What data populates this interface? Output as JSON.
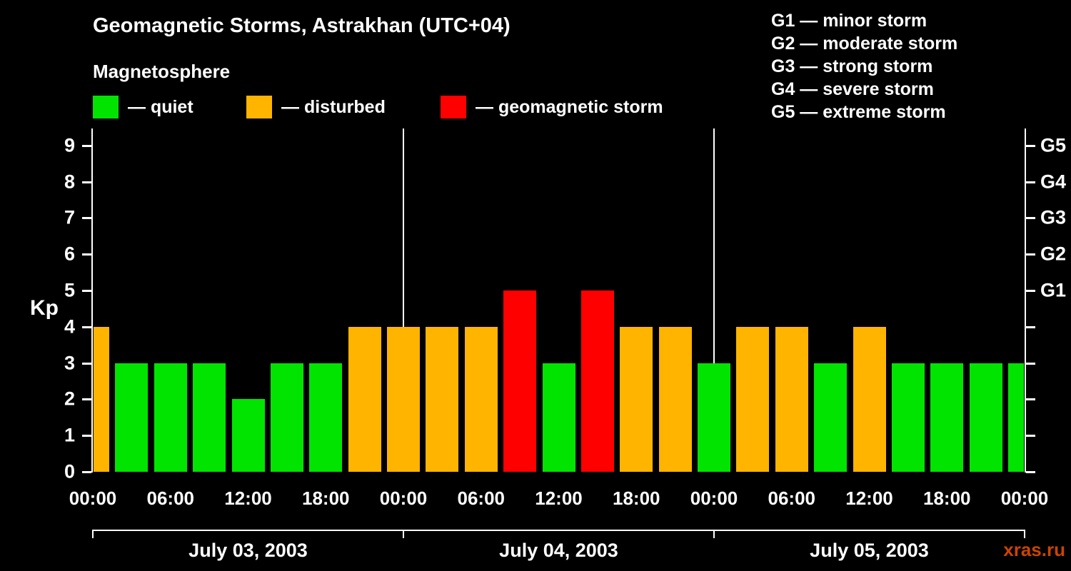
{
  "title": "Geomagnetic Storms, Astrakhan (UTC+04)",
  "subtitle": "Magnetosphere",
  "kp_legend": [
    {
      "name": "quiet",
      "label": "— quiet",
      "color": "#00e400"
    },
    {
      "name": "disturbed",
      "label": "— disturbed",
      "color": "#ffb400"
    },
    {
      "name": "storm",
      "label": "— geomagnetic storm",
      "color": "#ff0000"
    }
  ],
  "g_scale_legend": [
    "G1 — minor storm",
    "G2 — moderate storm",
    "G3 — strong storm",
    "G4 — severe storm",
    "G5 — extreme storm"
  ],
  "watermark": "xras.ru",
  "watermark_color": "#cc4400",
  "chart_data": {
    "type": "bar",
    "title": "Geomagnetic Storms, Astrakhan (UTC+04)",
    "ylabel": "Kp",
    "ylim": [
      0,
      9.45
    ],
    "yticks": [
      0,
      1,
      2,
      3,
      4,
      5,
      6,
      7,
      8,
      9
    ],
    "right_axis": [
      {
        "kp": 5,
        "label": "G1"
      },
      {
        "kp": 6,
        "label": "G2"
      },
      {
        "kp": 7,
        "label": "G3"
      },
      {
        "kp": 8,
        "label": "G4"
      },
      {
        "kp": 9,
        "label": "G5"
      }
    ],
    "x_unit_hours": 3,
    "x_range_hours": [
      0,
      72
    ],
    "x_tick_labels": [
      {
        "hour": 0,
        "label": "00:00"
      },
      {
        "hour": 6,
        "label": "06:00"
      },
      {
        "hour": 12,
        "label": "12:00"
      },
      {
        "hour": 18,
        "label": "18:00"
      },
      {
        "hour": 24,
        "label": "00:00"
      },
      {
        "hour": 30,
        "label": "06:00"
      },
      {
        "hour": 36,
        "label": "12:00"
      },
      {
        "hour": 42,
        "label": "18:00"
      },
      {
        "hour": 48,
        "label": "00:00"
      },
      {
        "hour": 54,
        "label": "06:00"
      },
      {
        "hour": 60,
        "label": "12:00"
      },
      {
        "hour": 66,
        "label": "18:00"
      },
      {
        "hour": 72,
        "label": "00:00"
      }
    ],
    "day_separator_hours": [
      24,
      48
    ],
    "days": [
      {
        "label": "July 03, 2003",
        "start_hour": 0,
        "end_hour": 24
      },
      {
        "label": "July 04, 2003",
        "start_hour": 24,
        "end_hour": 48
      },
      {
        "label": "July 05, 2003",
        "start_hour": 48,
        "end_hour": 72
      }
    ],
    "color_rules": {
      "quiet_max_kp": 3,
      "disturbed_kp": 4,
      "storm_min_kp": 5
    },
    "bars": [
      {
        "hour": 0,
        "kp": 4
      },
      {
        "hour": 3,
        "kp": 3
      },
      {
        "hour": 6,
        "kp": 3
      },
      {
        "hour": 9,
        "kp": 3
      },
      {
        "hour": 12,
        "kp": 2
      },
      {
        "hour": 15,
        "kp": 3
      },
      {
        "hour": 18,
        "kp": 3
      },
      {
        "hour": 21,
        "kp": 4
      },
      {
        "hour": 24,
        "kp": 4
      },
      {
        "hour": 27,
        "kp": 4
      },
      {
        "hour": 30,
        "kp": 4
      },
      {
        "hour": 33,
        "kp": 5
      },
      {
        "hour": 36,
        "kp": 3
      },
      {
        "hour": 39,
        "kp": 5
      },
      {
        "hour": 42,
        "kp": 4
      },
      {
        "hour": 45,
        "kp": 4
      },
      {
        "hour": 48,
        "kp": 3
      },
      {
        "hour": 51,
        "kp": 4
      },
      {
        "hour": 54,
        "kp": 4
      },
      {
        "hour": 57,
        "kp": 3
      },
      {
        "hour": 60,
        "kp": 4
      },
      {
        "hour": 63,
        "kp": 3
      },
      {
        "hour": 66,
        "kp": 3
      },
      {
        "hour": 69,
        "kp": 3
      },
      {
        "hour": 72,
        "kp": 3
      }
    ]
  }
}
